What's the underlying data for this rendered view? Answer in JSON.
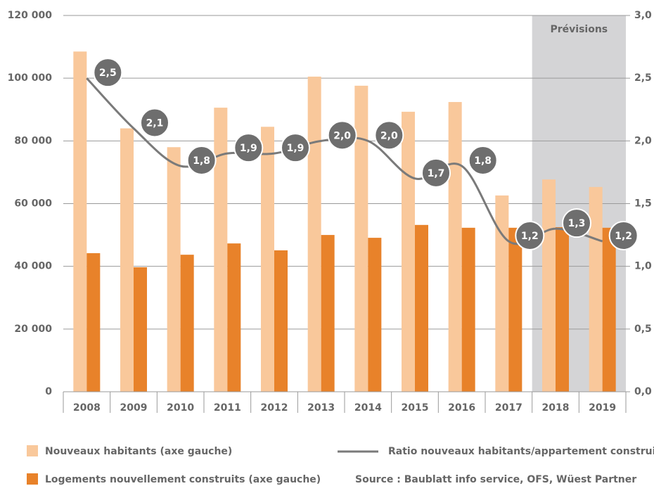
{
  "chart_data": {
    "type": "bar",
    "categories": [
      "2008",
      "2009",
      "2010",
      "2011",
      "2012",
      "2013",
      "2014",
      "2015",
      "2016",
      "2017",
      "2018",
      "2019"
    ],
    "series": [
      {
        "name": "Nouveaux habitants (axe gauche)",
        "color": "#f9c89b",
        "values": [
          108500,
          84000,
          78000,
          90600,
          84500,
          100500,
          97600,
          89300,
          92400,
          62600,
          67700,
          65300
        ]
      },
      {
        "name": "Logements nouvellement construits (axe gauche)",
        "color": "#e8822a",
        "values": [
          44200,
          39700,
          43700,
          47300,
          45100,
          50000,
          49100,
          53200,
          52300,
          52300,
          52500,
          52300
        ]
      },
      {
        "name": "Ratio nouveaux habitants/appartement construits (axe droit)",
        "type": "line",
        "axis": "y2",
        "color": "#7a7a7a",
        "values": [
          2.5,
          2.1,
          1.8,
          1.9,
          1.9,
          2.0,
          2.0,
          1.7,
          1.8,
          1.2,
          1.3,
          1.2
        ],
        "value_labels": [
          "2,5",
          "2,1",
          "1,8",
          "1,9",
          "1,9",
          "2,0",
          "2,0",
          "1,7",
          "1,8",
          "1,2",
          "1,3",
          "1,2"
        ]
      }
    ],
    "ylim": [
      0,
      120000
    ],
    "yticks": [
      0,
      {
        "value": 20000,
        "label": "20 000"
      },
      {
        "value": 40000,
        "label": "40 000"
      },
      {
        "value": 60000,
        "label": "60 000"
      },
      {
        "value": 80000,
        "label": "80 000"
      },
      {
        "value": 100000,
        "label": "100 000"
      },
      {
        "value": 120000,
        "label": "120 000"
      }
    ],
    "y2lim": [
      0,
      3
    ],
    "y2ticks": [
      {
        "value": 0,
        "label": "0,0"
      },
      {
        "value": 0.5,
        "label": "0,5"
      },
      {
        "value": 1,
        "label": "1,0"
      },
      {
        "value": 1.5,
        "label": "1,5"
      },
      {
        "value": 2,
        "label": "2,0"
      },
      {
        "value": 2.5,
        "label": "2,5"
      },
      {
        "value": 3,
        "label": "3,0"
      }
    ],
    "grid": true,
    "forecast": {
      "label": "Prévisions",
      "categories": [
        "2018",
        "2019"
      ]
    },
    "source": "Source : Baublatt info service, OFS, Wüest Partner"
  }
}
